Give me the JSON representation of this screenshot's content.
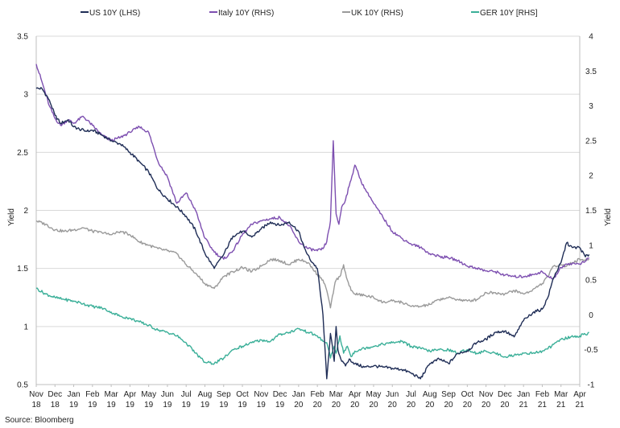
{
  "chart_data": {
    "type": "line",
    "title": "",
    "ylabel_left": "Yield",
    "ylabel_right": "Yield",
    "ylim_left": [
      0.5,
      3.5
    ],
    "ylim_right": [
      -1,
      4
    ],
    "yticks_left": [
      "0.5",
      "1",
      "1.5",
      "2",
      "2.5",
      "3",
      "3.5"
    ],
    "yticks_right": [
      "-1",
      "-0.5",
      "0",
      "0.5",
      "1",
      "1.5",
      "2",
      "2.5",
      "3",
      "3.5",
      "4"
    ],
    "x_ticks": [
      {
        "month": "Nov",
        "year": "18"
      },
      {
        "month": "Dec",
        "year": "18"
      },
      {
        "month": "Jan",
        "year": "19"
      },
      {
        "month": "Feb",
        "year": "19"
      },
      {
        "month": "Mar",
        "year": "19"
      },
      {
        "month": "Apr",
        "year": "19"
      },
      {
        "month": "May",
        "year": "19"
      },
      {
        "month": "Jun",
        "year": "19"
      },
      {
        "month": "Jul",
        "year": "19"
      },
      {
        "month": "Aug",
        "year": "19"
      },
      {
        "month": "Sep",
        "year": "19"
      },
      {
        "month": "Oct",
        "year": "19"
      },
      {
        "month": "Nov",
        "year": "19"
      },
      {
        "month": "Dec",
        "year": "19"
      },
      {
        "month": "Jan",
        "year": "20"
      },
      {
        "month": "Feb",
        "year": "20"
      },
      {
        "month": "Mar",
        "year": "20"
      },
      {
        "month": "Apr",
        "year": "20"
      },
      {
        "month": "May",
        "year": "20"
      },
      {
        "month": "Jun",
        "year": "20"
      },
      {
        "month": "Jul",
        "year": "20"
      },
      {
        "month": "Aug",
        "year": "20"
      },
      {
        "month": "Sep",
        "year": "20"
      },
      {
        "month": "Oct",
        "year": "20"
      },
      {
        "month": "Nov",
        "year": "20"
      },
      {
        "month": "Dec",
        "year": "20"
      },
      {
        "month": "Jan",
        "year": "21"
      },
      {
        "month": "Feb",
        "year": "21"
      },
      {
        "month": "Mar",
        "year": "21"
      },
      {
        "month": "Apr",
        "year": "21"
      }
    ],
    "grid": "horizontal",
    "legend_position": "top",
    "series": [
      {
        "name": "US 10Y (LHS)",
        "axis": "left",
        "color": "#1f2d56",
        "x": [
          0,
          0.3,
          0.7,
          1,
          1.3,
          1.7,
          2,
          2.3,
          2.7,
          3,
          3.5,
          4,
          4.5,
          5,
          5.5,
          6,
          6.5,
          7,
          7.5,
          8,
          8.5,
          9,
          9.5,
          10,
          10.5,
          11,
          11.5,
          12,
          12.5,
          13,
          13.5,
          14,
          14.3,
          14.6,
          15,
          15.3,
          15.5,
          15.7,
          15.9,
          16,
          16.1,
          16.3,
          16.5,
          16.7,
          17,
          17.5,
          18,
          18.5,
          19,
          19.5,
          20,
          20.5,
          21,
          21.5,
          22,
          22.5,
          23,
          23.5,
          24,
          24.5,
          25,
          25.5,
          26,
          26.5,
          27,
          27.3,
          27.6,
          28,
          28.3,
          28.6,
          29,
          29.3,
          29.5
        ],
        "values": [
          3.05,
          3.05,
          2.95,
          2.82,
          2.75,
          2.78,
          2.72,
          2.7,
          2.68,
          2.69,
          2.65,
          2.6,
          2.57,
          2.5,
          2.42,
          2.33,
          2.18,
          2.1,
          2.03,
          1.95,
          1.83,
          1.63,
          1.5,
          1.62,
          1.78,
          1.82,
          1.77,
          1.84,
          1.9,
          1.87,
          1.9,
          1.82,
          1.68,
          1.58,
          1.5,
          1.1,
          0.55,
          0.94,
          0.7,
          1.0,
          0.8,
          0.7,
          0.66,
          0.72,
          0.68,
          0.65,
          0.66,
          0.65,
          0.64,
          0.63,
          0.6,
          0.55,
          0.68,
          0.72,
          0.68,
          0.77,
          0.79,
          0.86,
          0.89,
          0.95,
          0.96,
          0.91,
          1.05,
          1.12,
          1.15,
          1.25,
          1.42,
          1.55,
          1.72,
          1.68,
          1.68,
          1.6,
          1.62
        ]
      },
      {
        "name": "Italy 10Y (RHS)",
        "axis": "right",
        "color": "#7d4fb0",
        "x": [
          0,
          0.3,
          0.7,
          1,
          1.3,
          1.7,
          2,
          2.5,
          3,
          3.5,
          4,
          4.5,
          5,
          5.5,
          6,
          6.5,
          7,
          7.5,
          8,
          8.5,
          9,
          9.5,
          10,
          10.5,
          11,
          11.5,
          12,
          12.5,
          13,
          13.5,
          14,
          14.5,
          15,
          15.3,
          15.5,
          15.7,
          15.85,
          16,
          16.15,
          16.3,
          16.5,
          16.7,
          17,
          17.3,
          17.5,
          17.7,
          18,
          18.5,
          19,
          19.5,
          20,
          20.5,
          21,
          21.5,
          22,
          22.5,
          23,
          23.5,
          24,
          24.5,
          25,
          25.5,
          26,
          26.5,
          27,
          27.3,
          27.6,
          28,
          28.3,
          28.6,
          29,
          29.3,
          29.5
        ],
        "values": [
          3.6,
          3.35,
          3.0,
          2.82,
          2.72,
          2.8,
          2.75,
          2.85,
          2.72,
          2.58,
          2.5,
          2.55,
          2.62,
          2.7,
          2.62,
          2.2,
          1.98,
          1.6,
          1.75,
          1.5,
          1.1,
          0.9,
          0.8,
          0.92,
          1.15,
          1.3,
          1.35,
          1.38,
          1.4,
          1.28,
          1.05,
          0.95,
          0.92,
          0.95,
          1.05,
          1.35,
          2.5,
          1.45,
          1.3,
          1.55,
          1.65,
          1.85,
          2.15,
          1.95,
          1.82,
          1.75,
          1.6,
          1.4,
          1.2,
          1.1,
          1.02,
          0.97,
          0.88,
          0.84,
          0.82,
          0.78,
          0.7,
          0.67,
          0.63,
          0.62,
          0.57,
          0.55,
          0.55,
          0.58,
          0.62,
          0.55,
          0.52,
          0.68,
          0.73,
          0.74,
          0.73,
          0.77,
          0.82
        ]
      },
      {
        "name": "UK 10Y (RHS)",
        "axis": "right",
        "color": "#9a9a9a",
        "x": [
          0,
          0.5,
          1,
          1.5,
          2,
          2.5,
          3,
          3.5,
          4,
          4.5,
          5,
          5.5,
          6,
          6.5,
          7,
          7.5,
          8,
          8.5,
          9,
          9.5,
          10,
          10.5,
          11,
          11.5,
          12,
          12.5,
          13,
          13.5,
          14,
          14.5,
          15,
          15.3,
          15.5,
          15.7,
          15.9,
          16,
          16.2,
          16.4,
          16.6,
          16.8,
          17,
          17.5,
          18,
          18.5,
          19,
          19.5,
          20,
          20.5,
          21,
          21.5,
          22,
          22.5,
          23,
          23.5,
          24,
          24.5,
          25,
          25.5,
          26,
          26.3,
          26.6,
          27,
          27.3,
          27.6,
          28,
          28.3,
          28.6,
          29,
          29.3,
          29.5
        ],
        "values": [
          1.35,
          1.3,
          1.22,
          1.2,
          1.22,
          1.25,
          1.2,
          1.18,
          1.15,
          1.2,
          1.15,
          1.05,
          1.0,
          0.95,
          0.92,
          0.88,
          0.72,
          0.6,
          0.45,
          0.38,
          0.55,
          0.62,
          0.68,
          0.62,
          0.7,
          0.8,
          0.78,
          0.72,
          0.8,
          0.75,
          0.58,
          0.5,
          0.35,
          0.1,
          0.4,
          0.5,
          0.55,
          0.72,
          0.5,
          0.35,
          0.3,
          0.28,
          0.25,
          0.18,
          0.2,
          0.18,
          0.12,
          0.12,
          0.15,
          0.22,
          0.25,
          0.22,
          0.2,
          0.22,
          0.32,
          0.32,
          0.3,
          0.35,
          0.3,
          0.33,
          0.38,
          0.45,
          0.55,
          0.7,
          0.72,
          0.7,
          0.75,
          0.8,
          0.78,
          0.8
        ]
      },
      {
        "name": "GER 10Y [RHS]",
        "axis": "right",
        "color": "#3aaf98",
        "x": [
          0,
          0.5,
          1,
          1.5,
          2,
          2.5,
          3,
          3.5,
          4,
          4.5,
          5,
          5.5,
          6,
          6.5,
          7,
          7.5,
          8,
          8.5,
          9,
          9.5,
          10,
          10.5,
          11,
          11.5,
          12,
          12.5,
          13,
          13.5,
          14,
          14.5,
          15,
          15.3,
          15.5,
          15.7,
          15.9,
          16,
          16.2,
          16.4,
          16.6,
          16.8,
          17,
          17.5,
          18,
          18.5,
          19,
          19.5,
          20,
          20.5,
          21,
          21.5,
          22,
          22.5,
          23,
          23.5,
          24,
          24.5,
          25,
          25.5,
          26,
          26.5,
          27,
          27.5,
          28,
          28.5,
          29,
          29.3,
          29.5
        ],
        "values": [
          0.38,
          0.3,
          0.25,
          0.22,
          0.2,
          0.16,
          0.12,
          0.1,
          0.04,
          -0.02,
          -0.05,
          -0.1,
          -0.15,
          -0.22,
          -0.25,
          -0.3,
          -0.4,
          -0.55,
          -0.68,
          -0.7,
          -0.62,
          -0.5,
          -0.45,
          -0.4,
          -0.36,
          -0.38,
          -0.28,
          -0.25,
          -0.2,
          -0.25,
          -0.3,
          -0.38,
          -0.4,
          -0.62,
          -0.45,
          -0.55,
          -0.3,
          -0.55,
          -0.45,
          -0.6,
          -0.52,
          -0.48,
          -0.45,
          -0.42,
          -0.4,
          -0.38,
          -0.45,
          -0.48,
          -0.52,
          -0.5,
          -0.5,
          -0.55,
          -0.5,
          -0.55,
          -0.52,
          -0.55,
          -0.6,
          -0.58,
          -0.55,
          -0.55,
          -0.52,
          -0.45,
          -0.35,
          -0.32,
          -0.3,
          -0.28,
          -0.25
        ]
      }
    ]
  },
  "source": "Source: Bloomberg"
}
